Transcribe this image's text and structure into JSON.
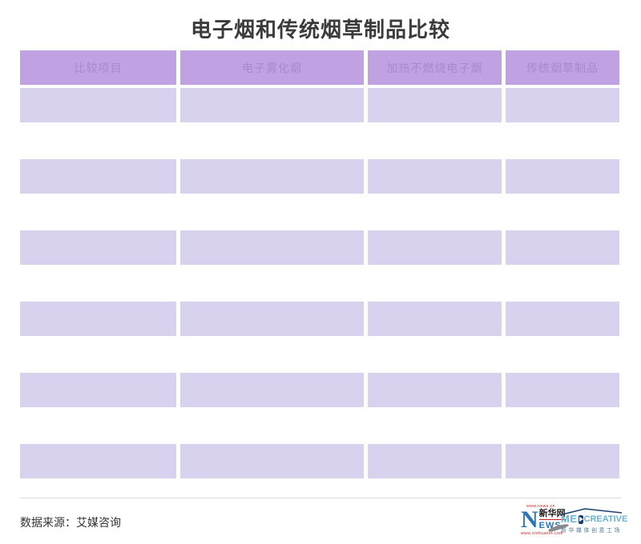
{
  "title": "电子烟和传统烟草制品比较",
  "chart_data": {
    "type": "table",
    "title": "电子烟和传统烟草制品比较",
    "columns": [
      "比较项目",
      "电子雾化烟",
      "加热不燃烧电子烟",
      "传统烟草制品"
    ],
    "rows": [
      [
        "",
        "",
        "",
        ""
      ],
      [
        "",
        "",
        "",
        ""
      ],
      [
        "",
        "",
        "",
        ""
      ],
      [
        "",
        "",
        "",
        ""
      ],
      [
        "",
        "",
        "",
        ""
      ],
      [
        "",
        "",
        "",
        ""
      ]
    ],
    "source": "数据来源：艾媒咨询",
    "layout_hints": {
      "header_filled": true,
      "body_cells_empty": true,
      "striped_bands": true
    }
  },
  "footer": {
    "source_label": "数据来源：艾媒咨询",
    "xinhuanet_logo": {
      "url_top": "www.news.cn",
      "letter_n": "N",
      "name_cn": "新华网",
      "letters_ews": "EWS",
      "url_bottom": "www.xinhuanet.com"
    },
    "medcreative_logo": {
      "me": "ME",
      "creative": "CREATIVE",
      "subtitle": "新华媒体创意工场"
    }
  },
  "colors": {
    "title_color": "#3b3b3b",
    "header_bg": "#c0a1e2",
    "header_text": "#a58cc8",
    "row_bg": "#d8d2ee",
    "divider": "#dcdcdc",
    "source_color": "#333333",
    "xinhua_blue": "#2a74ba",
    "xinhua_red": "#c42323",
    "med_lightblue": "#6ab4d4",
    "med_navy": "#1c3f6e"
  }
}
